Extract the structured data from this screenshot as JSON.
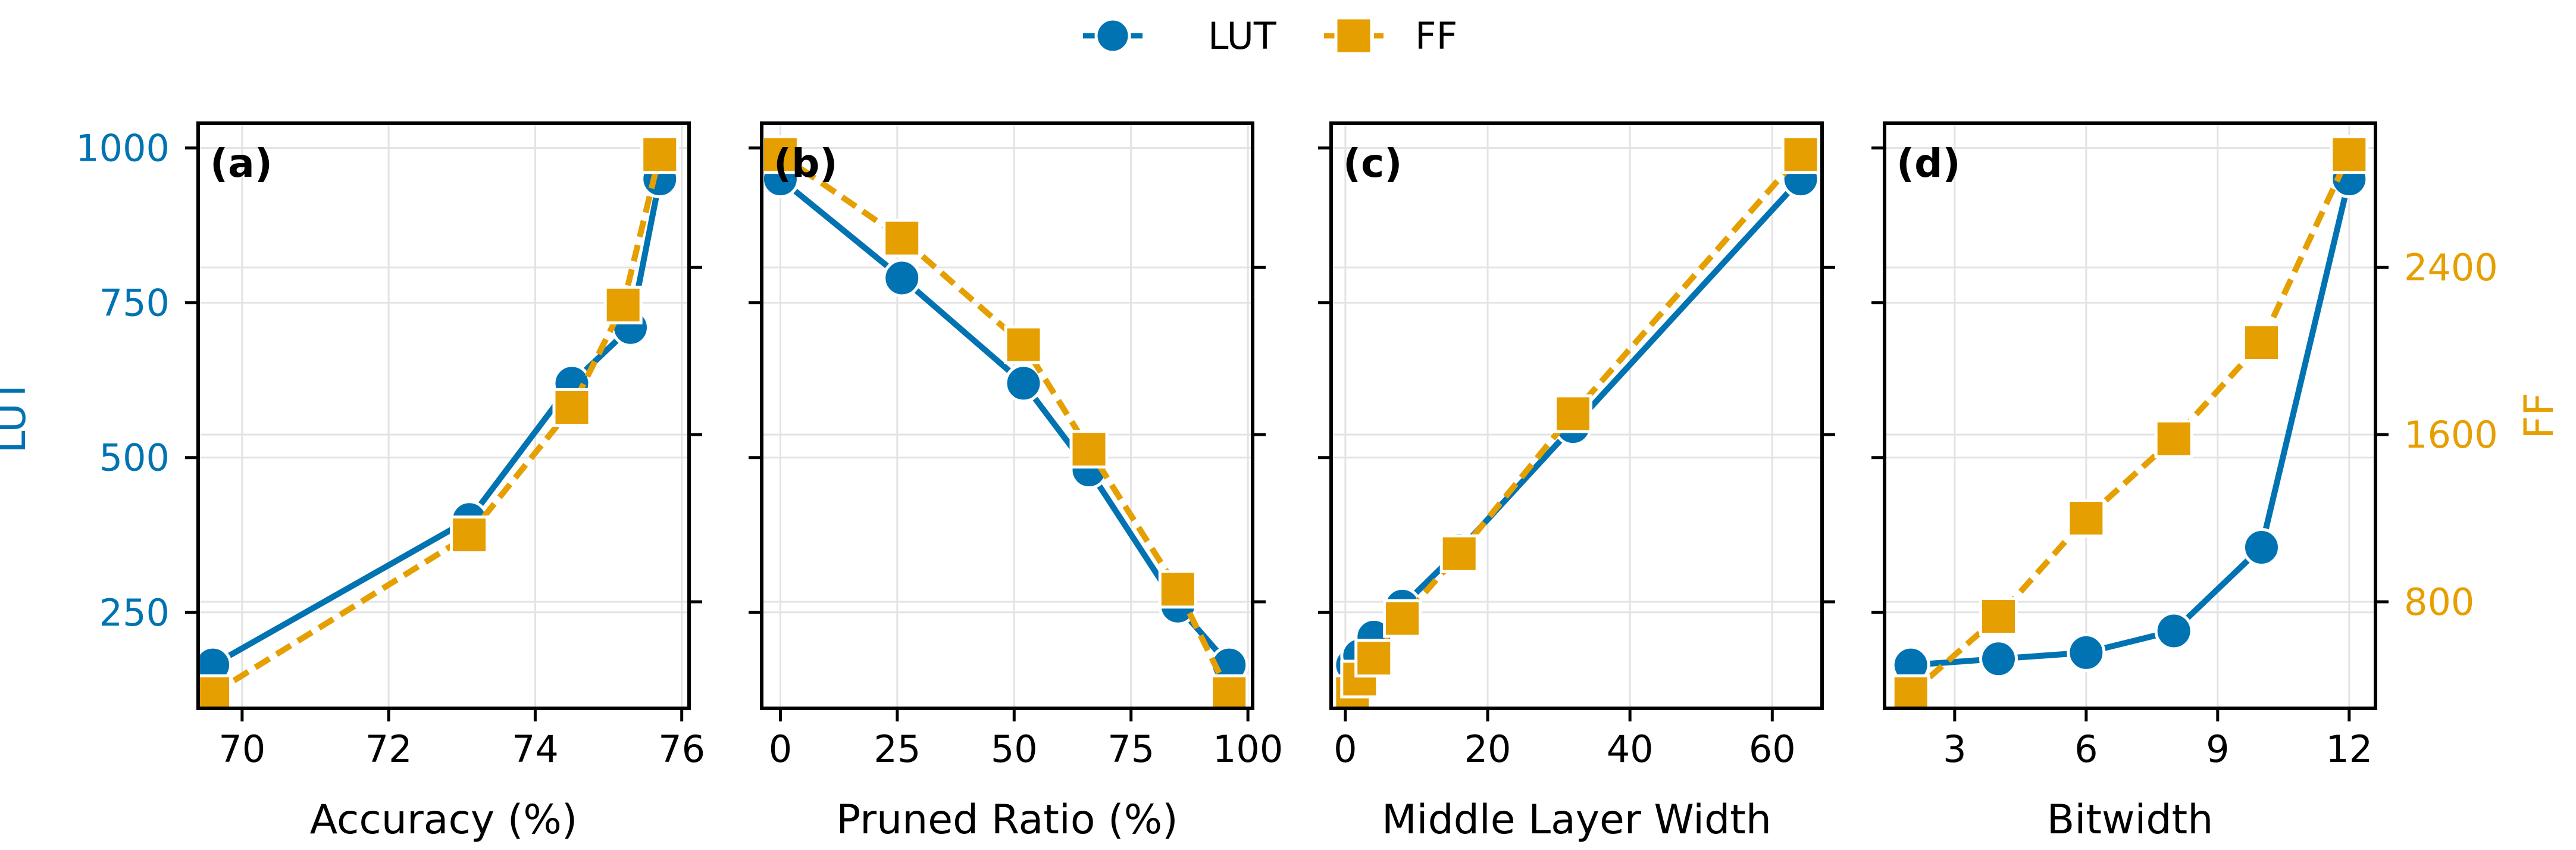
{
  "colors": {
    "lut": "#0173b2",
    "ff": "#e69f00",
    "axis": "#000000",
    "grid": "#e3e3e3"
  },
  "legend": {
    "placement": "top-center",
    "entries": [
      {
        "label": "LUT",
        "marker": "circle",
        "linestyle": "solid"
      },
      {
        "label": "FF",
        "marker": "square",
        "linestyle": "dashed"
      }
    ]
  },
  "chart_data": [
    {
      "type": "line",
      "panel_label": "(a)",
      "xlabel": "Accuracy (%)",
      "ylabel": "LUT",
      "xlim": [
        69.4,
        76.1
      ],
      "xticks": [
        70,
        72,
        74,
        76
      ],
      "lut_axis": {
        "ylim": [
          95,
          1040
        ],
        "ticks": [
          250,
          500,
          750,
          1000
        ],
        "tick_labels_shown": true
      },
      "ff_axis": {
        "ylim": [
          290,
          3090
        ],
        "ticks": [
          800,
          1600,
          2400
        ],
        "tick_labels_shown": false
      },
      "grid": true,
      "series": [
        {
          "name": "LUT",
          "x": [
            69.6,
            73.1,
            74.5,
            75.3,
            75.7
          ],
          "y": [
            165,
            400,
            620,
            710,
            950
          ]
        },
        {
          "name": "FF",
          "x": [
            69.6,
            73.1,
            74.5,
            75.2,
            75.7
          ],
          "y": [
            360,
            1120,
            1730,
            2220,
            2940
          ]
        }
      ]
    },
    {
      "type": "line",
      "panel_label": "(b)",
      "xlabel": "Pruned Ratio (%)",
      "ylabel": "",
      "xlim": [
        -4,
        101
      ],
      "xticks": [
        0,
        25,
        50,
        75,
        100
      ],
      "lut_axis": {
        "ylim": [
          95,
          1040
        ],
        "ticks": [
          250,
          500,
          750,
          1000
        ],
        "tick_labels_shown": false
      },
      "ff_axis": {
        "ylim": [
          290,
          3090
        ],
        "ticks": [
          800,
          1600,
          2400
        ],
        "tick_labels_shown": false
      },
      "grid": true,
      "series": [
        {
          "name": "LUT",
          "x": [
            0,
            26,
            52,
            66,
            85,
            96
          ],
          "y": [
            950,
            790,
            620,
            480,
            260,
            165
          ]
        },
        {
          "name": "FF",
          "x": [
            0,
            26,
            52,
            66,
            85,
            96
          ],
          "y": [
            2940,
            2540,
            2030,
            1530,
            860,
            360
          ]
        }
      ]
    },
    {
      "type": "line",
      "panel_label": "(c)",
      "xlabel": "Middle Layer Width",
      "ylabel": "",
      "xlim": [
        -2,
        67
      ],
      "xticks": [
        0,
        20,
        40,
        60
      ],
      "lut_axis": {
        "ylim": [
          95,
          1040
        ],
        "ticks": [
          250,
          500,
          750,
          1000
        ],
        "tick_labels_shown": false
      },
      "ff_axis": {
        "ylim": [
          290,
          3090
        ],
        "ticks": [
          800,
          1600,
          2400
        ],
        "tick_labels_shown": false
      },
      "grid": true,
      "series": [
        {
          "name": "LUT",
          "x": [
            1,
            2,
            4,
            8,
            16,
            32,
            64
          ],
          "y": [
            165,
            180,
            210,
            260,
            350,
            550,
            950
          ]
        },
        {
          "name": "FF",
          "x": [
            1,
            2,
            4,
            8,
            16,
            32,
            64
          ],
          "y": [
            360,
            430,
            530,
            720,
            1030,
            1700,
            2940
          ]
        }
      ]
    },
    {
      "type": "line",
      "panel_label": "(d)",
      "xlabel": "Bitwidth",
      "ylabel": "FF",
      "xlim": [
        1.4,
        12.6
      ],
      "xticks": [
        3,
        6,
        9,
        12
      ],
      "lut_axis": {
        "ylim": [
          95,
          1040
        ],
        "ticks": [
          250,
          500,
          750,
          1000
        ],
        "tick_labels_shown": false
      },
      "ff_axis": {
        "ylim": [
          290,
          3090
        ],
        "ticks": [
          800,
          1600,
          2400
        ],
        "tick_labels_shown": true
      },
      "grid": true,
      "series": [
        {
          "name": "LUT",
          "x": [
            2,
            4,
            6,
            8,
            10,
            12
          ],
          "y": [
            165,
            175,
            185,
            220,
            355,
            950
          ]
        },
        {
          "name": "FF",
          "x": [
            2,
            4,
            6,
            8,
            10,
            12
          ],
          "y": [
            360,
            730,
            1200,
            1580,
            2040,
            2940
          ]
        }
      ]
    }
  ]
}
